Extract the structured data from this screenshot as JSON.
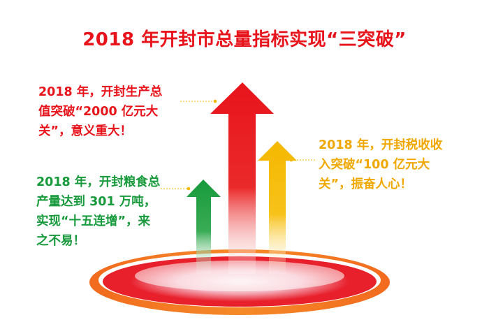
{
  "title": "2018 年开封市总量指标实现“三突破”",
  "notes": {
    "red": {
      "color": "#e8141c",
      "lines": [
        "2018 年，开封生产总",
        "值突破“2000 亿元大",
        "关”，意义重大！"
      ]
    },
    "green": {
      "color": "#179a3b",
      "lines": [
        "2018 年，开封粮食总",
        "产量达到 301 万吨，",
        "实现“十五连增”，来",
        "之不易！"
      ]
    },
    "yellow": {
      "color": "#f0a800",
      "lines": [
        "2018 年，开封税收收",
        "入突破“100 亿元大",
        "关”，振奋人心！"
      ]
    }
  },
  "colors": {
    "red": "#e8141c",
    "green": "#179a3b",
    "yellow": "#f5b800",
    "base_outer": "#f06a1e",
    "base_inner": "#e8202c"
  }
}
